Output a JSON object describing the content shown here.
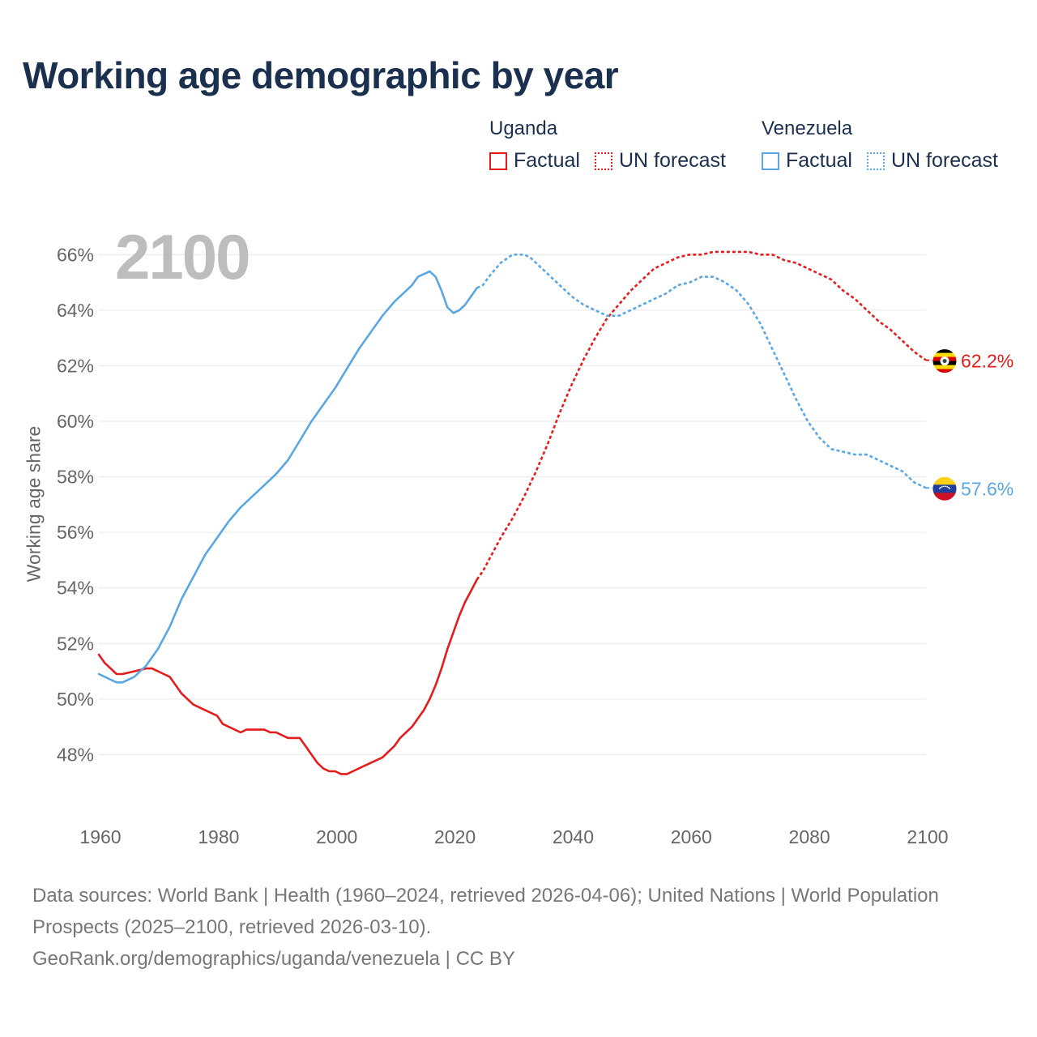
{
  "title": "Working age demographic by year",
  "year_display": "2100",
  "legend": [
    {
      "country": "Uganda",
      "color": "#e51c1c",
      "entries": [
        {
          "label": "Factual",
          "style": "solid"
        },
        {
          "label": "UN forecast",
          "style": "dotted"
        }
      ]
    },
    {
      "country": "Venezuela",
      "color": "#5aa7e6",
      "entries": [
        {
          "label": "Factual",
          "style": "solid"
        },
        {
          "label": "UN forecast",
          "style": "dotted"
        }
      ]
    }
  ],
  "footer": {
    "sources": "Data sources: World Bank | Health (1960–2024, retrieved 2026-04-06); United Nations | World Population Prospects (2025–2100, retrieved 2026-03-10).",
    "link": "GeoRank.org/demographics/uganda/venezuela | CC BY"
  },
  "chart_data": {
    "type": "line",
    "ylabel": "Working age share",
    "xlabel": "",
    "xlim": [
      1960,
      2100
    ],
    "ylim": [
      46,
      67
    ],
    "xticks": [
      1960,
      1980,
      2000,
      2020,
      2040,
      2060,
      2080,
      2100
    ],
    "yticks": [
      48,
      50,
      52,
      54,
      56,
      58,
      60,
      62,
      64,
      66
    ],
    "ytick_suffix": "%",
    "grid": true,
    "factual_end_year": 2024,
    "series": [
      {
        "name": "Uganda",
        "color": "#e51c1c",
        "end_label": "62.2%",
        "flag": "uganda",
        "points": [
          [
            1960,
            51.6
          ],
          [
            1961,
            51.3
          ],
          [
            1963,
            50.9
          ],
          [
            1964,
            50.9
          ],
          [
            1966,
            51.0
          ],
          [
            1968,
            51.1
          ],
          [
            1969,
            51.1
          ],
          [
            1971,
            50.9
          ],
          [
            1972,
            50.8
          ],
          [
            1974,
            50.2
          ],
          [
            1976,
            49.8
          ],
          [
            1978,
            49.6
          ],
          [
            1980,
            49.4
          ],
          [
            1981,
            49.1
          ],
          [
            1984,
            48.8
          ],
          [
            1985,
            48.9
          ],
          [
            1988,
            48.9
          ],
          [
            1989,
            48.8
          ],
          [
            1990,
            48.8
          ],
          [
            1991,
            48.7
          ],
          [
            1992,
            48.6
          ],
          [
            1994,
            48.6
          ],
          [
            1995,
            48.3
          ],
          [
            1996,
            48.0
          ],
          [
            1997,
            47.7
          ],
          [
            1998,
            47.5
          ],
          [
            1999,
            47.4
          ],
          [
            2000,
            47.4
          ],
          [
            2001,
            47.3
          ],
          [
            2002,
            47.3
          ],
          [
            2003,
            47.4
          ],
          [
            2005,
            47.6
          ],
          [
            2007,
            47.8
          ],
          [
            2008,
            47.9
          ],
          [
            2009,
            48.1
          ],
          [
            2010,
            48.3
          ],
          [
            2011,
            48.6
          ],
          [
            2012,
            48.8
          ],
          [
            2013,
            49.0
          ],
          [
            2014,
            49.3
          ],
          [
            2015,
            49.6
          ],
          [
            2016,
            50.0
          ],
          [
            2017,
            50.5
          ],
          [
            2018,
            51.1
          ],
          [
            2019,
            51.8
          ],
          [
            2020,
            52.4
          ],
          [
            2021,
            53.0
          ],
          [
            2022,
            53.5
          ],
          [
            2023,
            53.9
          ],
          [
            2024,
            54.3
          ],
          [
            2025,
            54.6
          ],
          [
            2026,
            55.0
          ],
          [
            2028,
            55.8
          ],
          [
            2030,
            56.5
          ],
          [
            2032,
            57.3
          ],
          [
            2034,
            58.2
          ],
          [
            2036,
            59.2
          ],
          [
            2038,
            60.3
          ],
          [
            2040,
            61.3
          ],
          [
            2042,
            62.2
          ],
          [
            2044,
            63.0
          ],
          [
            2046,
            63.7
          ],
          [
            2048,
            64.2
          ],
          [
            2050,
            64.7
          ],
          [
            2052,
            65.1
          ],
          [
            2054,
            65.5
          ],
          [
            2056,
            65.7
          ],
          [
            2058,
            65.9
          ],
          [
            2060,
            66.0
          ],
          [
            2062,
            66.0
          ],
          [
            2064,
            66.1
          ],
          [
            2066,
            66.1
          ],
          [
            2068,
            66.1
          ],
          [
            2070,
            66.1
          ],
          [
            2072,
            66.0
          ],
          [
            2074,
            66.0
          ],
          [
            2076,
            65.8
          ],
          [
            2078,
            65.7
          ],
          [
            2080,
            65.5
          ],
          [
            2082,
            65.3
          ],
          [
            2084,
            65.1
          ],
          [
            2086,
            64.7
          ],
          [
            2088,
            64.4
          ],
          [
            2090,
            64.0
          ],
          [
            2092,
            63.6
          ],
          [
            2094,
            63.3
          ],
          [
            2096,
            62.9
          ],
          [
            2098,
            62.5
          ],
          [
            2100,
            62.2
          ]
        ]
      },
      {
        "name": "Venezuela",
        "color": "#5aa7e6",
        "end_label": "57.6%",
        "flag": "venezuela",
        "points": [
          [
            1960,
            50.9
          ],
          [
            1962,
            50.7
          ],
          [
            1963,
            50.6
          ],
          [
            1964,
            50.6
          ],
          [
            1966,
            50.8
          ],
          [
            1968,
            51.2
          ],
          [
            1970,
            51.8
          ],
          [
            1972,
            52.6
          ],
          [
            1974,
            53.6
          ],
          [
            1976,
            54.4
          ],
          [
            1978,
            55.2
          ],
          [
            1980,
            55.8
          ],
          [
            1982,
            56.4
          ],
          [
            1984,
            56.9
          ],
          [
            1986,
            57.3
          ],
          [
            1988,
            57.7
          ],
          [
            1990,
            58.1
          ],
          [
            1992,
            58.6
          ],
          [
            1994,
            59.3
          ],
          [
            1996,
            60.0
          ],
          [
            1998,
            60.6
          ],
          [
            2000,
            61.2
          ],
          [
            2002,
            61.9
          ],
          [
            2004,
            62.6
          ],
          [
            2006,
            63.2
          ],
          [
            2008,
            63.8
          ],
          [
            2010,
            64.3
          ],
          [
            2012,
            64.7
          ],
          [
            2013,
            64.9
          ],
          [
            2014,
            65.2
          ],
          [
            2015,
            65.3
          ],
          [
            2016,
            65.4
          ],
          [
            2017,
            65.2
          ],
          [
            2018,
            64.7
          ],
          [
            2019,
            64.1
          ],
          [
            2020,
            63.9
          ],
          [
            2021,
            64.0
          ],
          [
            2022,
            64.2
          ],
          [
            2023,
            64.5
          ],
          [
            2024,
            64.8
          ],
          [
            2025,
            64.9
          ],
          [
            2026,
            65.2
          ],
          [
            2028,
            65.7
          ],
          [
            2030,
            66.0
          ],
          [
            2032,
            66.0
          ],
          [
            2033,
            65.9
          ],
          [
            2034,
            65.7
          ],
          [
            2036,
            65.3
          ],
          [
            2038,
            64.9
          ],
          [
            2040,
            64.5
          ],
          [
            2042,
            64.2
          ],
          [
            2044,
            64.0
          ],
          [
            2046,
            63.8
          ],
          [
            2048,
            63.8
          ],
          [
            2050,
            64.0
          ],
          [
            2052,
            64.2
          ],
          [
            2054,
            64.4
          ],
          [
            2056,
            64.6
          ],
          [
            2058,
            64.9
          ],
          [
            2060,
            65.0
          ],
          [
            2062,
            65.2
          ],
          [
            2064,
            65.2
          ],
          [
            2066,
            65.0
          ],
          [
            2068,
            64.7
          ],
          [
            2070,
            64.2
          ],
          [
            2072,
            63.5
          ],
          [
            2074,
            62.6
          ],
          [
            2076,
            61.7
          ],
          [
            2078,
            60.8
          ],
          [
            2080,
            60.0
          ],
          [
            2082,
            59.4
          ],
          [
            2084,
            59.0
          ],
          [
            2086,
            58.9
          ],
          [
            2088,
            58.8
          ],
          [
            2090,
            58.8
          ],
          [
            2092,
            58.6
          ],
          [
            2094,
            58.4
          ],
          [
            2096,
            58.2
          ],
          [
            2098,
            57.8
          ],
          [
            2100,
            57.6
          ]
        ]
      }
    ]
  }
}
